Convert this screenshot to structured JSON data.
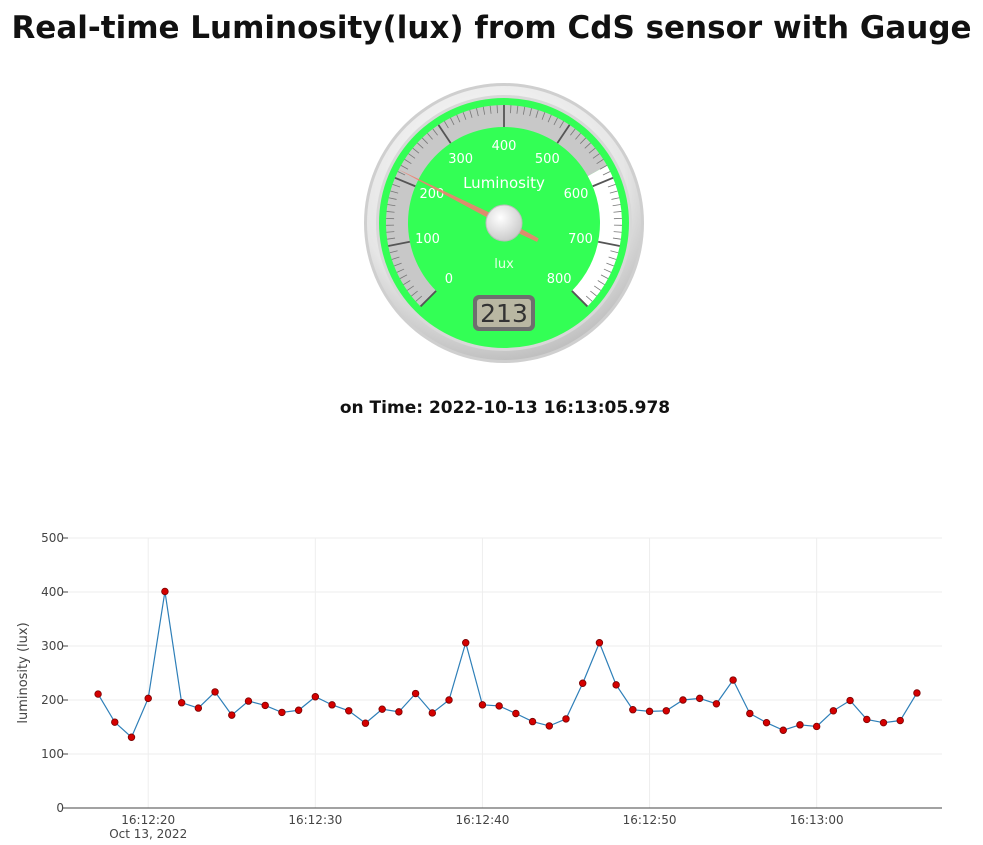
{
  "page": {
    "title": "Real-time Luminosity(lux) from CdS sensor with Gauge",
    "time_label": "on Time: 2022-10-13 16:13:05.978"
  },
  "gauge": {
    "title": "Luminosity",
    "units": "lux",
    "min": 0,
    "max": 800,
    "value": 213,
    "value_display": "213",
    "ticks": [
      "0",
      "100",
      "200",
      "300",
      "400",
      "500",
      "600",
      "700",
      "800"
    ],
    "face_color": "#33ff55",
    "needle_color": "#f08070",
    "grey_band_max": 580
  },
  "chart_data": {
    "type": "line",
    "ylabel": "luminosity (lux)",
    "ylim": [
      0,
      500
    ],
    "yticks": [
      0,
      100,
      200,
      300,
      400,
      500
    ],
    "x_range": [
      "16:12:15.2",
      "16:13:07.5"
    ],
    "xticks": [
      {
        "t": "16:12:20",
        "label": "16:12:20",
        "sublabel": "Oct 13, 2022"
      },
      {
        "t": "16:12:30",
        "label": "16:12:30"
      },
      {
        "t": "16:12:40",
        "label": "16:12:40"
      },
      {
        "t": "16:12:50",
        "label": "16:12:50"
      },
      {
        "t": "16:13:00",
        "label": "16:13:00"
      }
    ],
    "grid": true,
    "line_color": "#2e7fb8",
    "marker_color": "#d40000",
    "series": [
      {
        "x": [
          "16:12:17",
          "16:12:18",
          "16:12:19",
          "16:12:20",
          "16:12:21",
          "16:12:22",
          "16:12:23",
          "16:12:24",
          "16:12:25",
          "16:12:26",
          "16:12:27",
          "16:12:28",
          "16:12:29",
          "16:12:30",
          "16:12:31",
          "16:12:32",
          "16:12:33",
          "16:12:34",
          "16:12:35",
          "16:12:36",
          "16:12:37",
          "16:12:38",
          "16:12:39",
          "16:12:40",
          "16:12:41",
          "16:12:42",
          "16:12:43",
          "16:12:44",
          "16:12:45",
          "16:12:46",
          "16:12:47",
          "16:12:48",
          "16:12:49",
          "16:12:50",
          "16:12:51",
          "16:12:52",
          "16:12:53",
          "16:12:54",
          "16:12:55",
          "16:12:56",
          "16:12:57",
          "16:12:58",
          "16:12:59",
          "16:13:00",
          "16:13:01",
          "16:13:02",
          "16:13:03",
          "16:13:04",
          "16:13:05",
          "16:13:06"
        ],
        "values": [
          211,
          159,
          131,
          203,
          401,
          195,
          185,
          215,
          172,
          198,
          190,
          177,
          181,
          206,
          191,
          180,
          157,
          183,
          178,
          212,
          176,
          200,
          306,
          191,
          189,
          175,
          160,
          152,
          165,
          231,
          306,
          228,
          182,
          179,
          180,
          200,
          203,
          193,
          237,
          175,
          158,
          144,
          154,
          151,
          180,
          199,
          164,
          158,
          162,
          213
        ]
      }
    ]
  }
}
